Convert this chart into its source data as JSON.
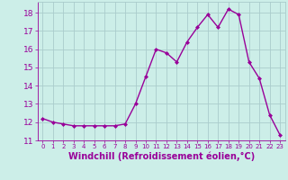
{
  "x": [
    0,
    1,
    2,
    3,
    4,
    5,
    6,
    7,
    8,
    9,
    10,
    11,
    12,
    13,
    14,
    15,
    16,
    17,
    18,
    19,
    20,
    21,
    22,
    23
  ],
  "y": [
    12.2,
    12.0,
    11.9,
    11.8,
    11.8,
    11.8,
    11.8,
    11.8,
    11.9,
    13.0,
    14.5,
    16.0,
    15.8,
    15.3,
    16.4,
    17.2,
    17.9,
    17.2,
    18.2,
    17.9,
    15.3,
    14.4,
    12.4,
    11.3
  ],
  "line_color": "#990099",
  "marker": "D",
  "marker_size": 2,
  "bg_color": "#cceee8",
  "grid_color": "#aacccc",
  "xlabel": "Windchill (Refroidissement éolien,°C)",
  "ylim": [
    11,
    18.6
  ],
  "xlim": [
    -0.5,
    23.5
  ],
  "yticks": [
    11,
    12,
    13,
    14,
    15,
    16,
    17,
    18
  ],
  "xticks": [
    0,
    1,
    2,
    3,
    4,
    5,
    6,
    7,
    8,
    9,
    10,
    11,
    12,
    13,
    14,
    15,
    16,
    17,
    18,
    19,
    20,
    21,
    22,
    23
  ],
  "tick_color": "#990099",
  "xlabel_color": "#990099",
  "xlabel_fontsize": 7,
  "ytick_fontsize": 6.5,
  "xtick_fontsize": 5.0,
  "linewidth": 1.0
}
